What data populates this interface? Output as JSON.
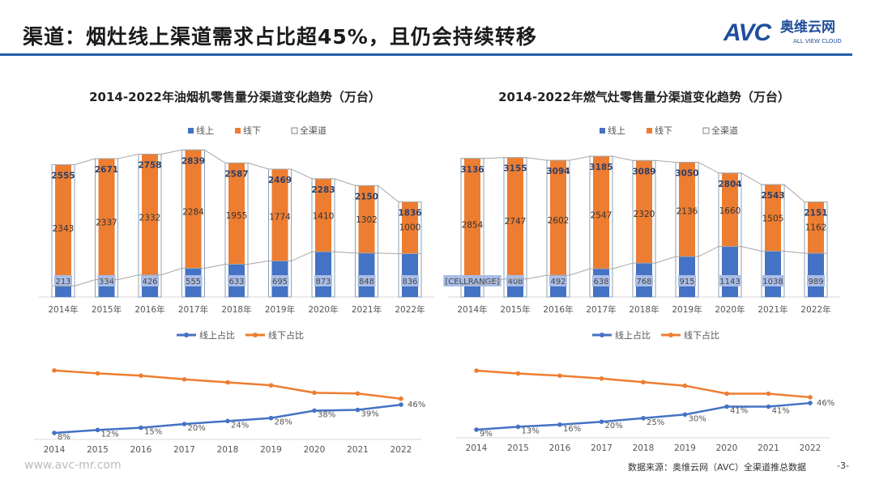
{
  "header": {
    "title": "渠道：烟灶线上渠道需求占比超45%，且仍会持续转移",
    "logo_text": "AVC",
    "logo_cn": "奥维云网",
    "logo_en": "ALL VIEW CLOUD"
  },
  "colors": {
    "online": "#4472c4",
    "online_label_bg": "#a9bde6",
    "offline": "#ed7d31",
    "accent": "#1f5fa6"
  },
  "chart_data": [
    {
      "type": "bar",
      "stacked": true,
      "title": "2014-2022年油烟机零售量分渠道变化趋势（万台）",
      "categories": [
        "2014年",
        "2015年",
        "2016年",
        "2017年",
        "2018年",
        "2019年",
        "2020年",
        "2021年",
        "2022年"
      ],
      "legend": [
        "线上",
        "线下",
        "全渠道"
      ],
      "legend_position": "top",
      "series": [
        {
          "name": "线上",
          "values": [
            213,
            334,
            426,
            555,
            633,
            695,
            873,
            848,
            836
          ]
        },
        {
          "name": "线下",
          "values": [
            2343,
            2337,
            2332,
            2284,
            1955,
            1774,
            1410,
            1302,
            1000
          ]
        },
        {
          "name": "全渠道",
          "values": [
            2555,
            2671,
            2758,
            2839,
            2587,
            2469,
            2283,
            2150,
            1836
          ]
        }
      ],
      "online_labels": [
        "213",
        "334",
        "426",
        "555",
        "633",
        "695",
        "873",
        "848",
        "836"
      ]
    },
    {
      "type": "bar",
      "stacked": true,
      "title": "2014-2022年燃气灶零售量分渠道变化趋势（万台）",
      "categories": [
        "2014年",
        "2015年",
        "2016年",
        "2017年",
        "2018年",
        "2019年",
        "2020年",
        "2021年",
        "2022年"
      ],
      "legend": [
        "线上",
        "线下",
        "全渠道"
      ],
      "legend_position": "top",
      "series": [
        {
          "name": "线上",
          "values": [
            282,
            408,
            492,
            638,
            768,
            915,
            1143,
            1038,
            989
          ]
        },
        {
          "name": "线下",
          "values": [
            2854,
            2747,
            2602,
            2547,
            2320,
            2136,
            1660,
            1505,
            1162
          ]
        },
        {
          "name": "全渠道",
          "values": [
            3136,
            3155,
            3094,
            3185,
            3089,
            3050,
            2804,
            2543,
            2151
          ]
        }
      ],
      "online_labels": [
        "[CELLRANGE]",
        "408",
        "492",
        "638",
        "768",
        "915",
        "1143",
        "1038",
        "989"
      ]
    },
    {
      "type": "line",
      "categories": [
        "2014",
        "2015",
        "2016",
        "2017",
        "2018",
        "2019",
        "2020",
        "2021",
        "2022"
      ],
      "legend": [
        "线上占比",
        "线下占比"
      ],
      "legend_position": "top",
      "series": [
        {
          "name": "线上占比",
          "values": [
            8,
            12,
            15,
            20,
            24,
            28,
            38,
            39,
            46
          ]
        },
        {
          "name": "线下占比",
          "values": [
            92,
            88,
            85,
            80,
            76,
            72,
            62,
            61,
            54
          ]
        }
      ],
      "labels": [
        "8%",
        "12%",
        "15%",
        "20%",
        "24%",
        "28%",
        "38%",
        "39%",
        "46%"
      ]
    },
    {
      "type": "line",
      "categories": [
        "2014",
        "2015",
        "2016",
        "2017",
        "2018",
        "2019",
        "2020",
        "2021",
        "2022"
      ],
      "legend": [
        "线上占比",
        "线下占比"
      ],
      "legend_position": "top",
      "series": [
        {
          "name": "线上占比",
          "values": [
            9,
            13,
            16,
            20,
            25,
            30,
            41,
            41,
            46
          ]
        },
        {
          "name": "线下占比",
          "values": [
            91,
            87,
            84,
            80,
            75,
            70,
            59,
            59,
            54
          ]
        }
      ],
      "labels": [
        "9%",
        "13%",
        "16%",
        "20%",
        "25%",
        "30%",
        "41%",
        "41%",
        "46%"
      ]
    }
  ],
  "footer": {
    "website": "www.avc-mr.com",
    "source": "数据来源：奥维云网（AVC）全渠道推总数据",
    "page": "-3-"
  }
}
